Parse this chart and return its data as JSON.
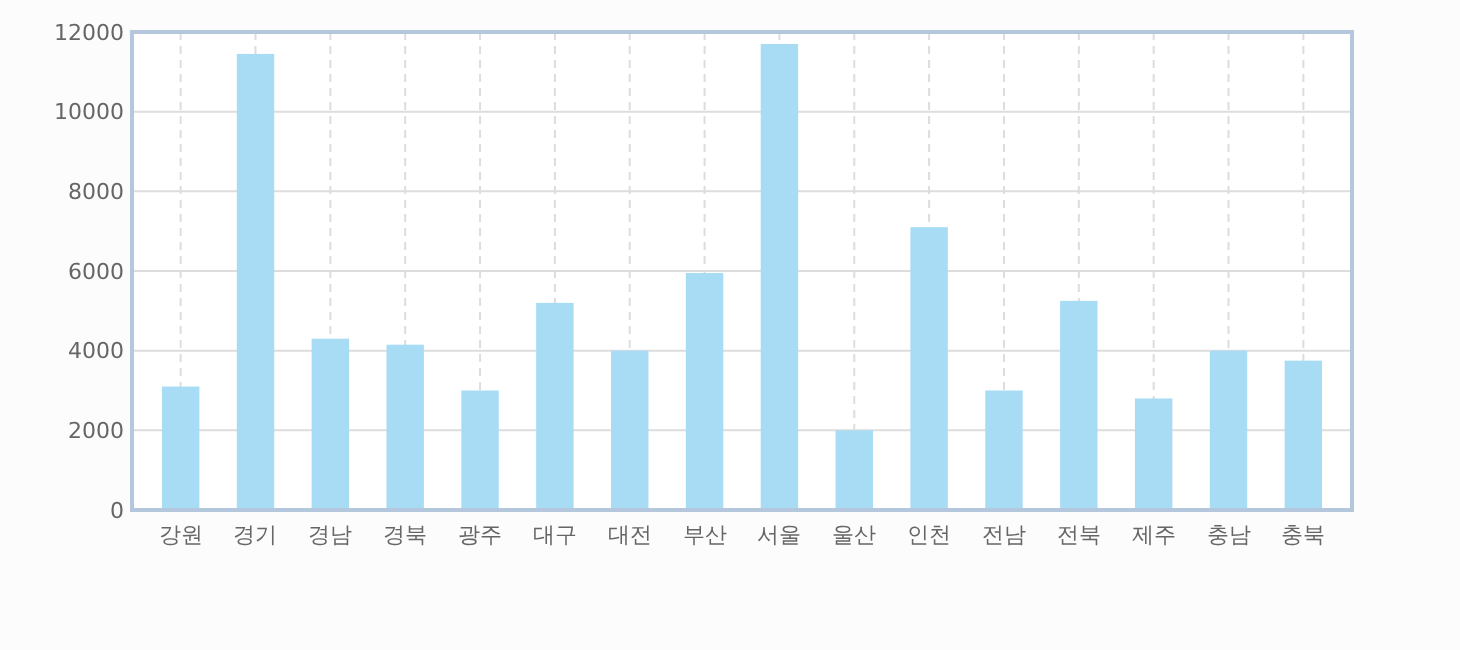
{
  "chart_data": {
    "type": "bar",
    "categories": [
      "강원",
      "경기",
      "경남",
      "경북",
      "광주",
      "대구",
      "대전",
      "부산",
      "서울",
      "울산",
      "인천",
      "전남",
      "전북",
      "제주",
      "충남",
      "충북"
    ],
    "series": [
      {
        "color": "#a8dcf5",
        "values": [
          3100,
          11450,
          4300,
          4150,
          3000,
          5200,
          4000,
          5950,
          11700,
          2000,
          7100,
          3000,
          5250,
          2800,
          4000,
          3750
        ]
      }
    ],
    "ylim": [
      0,
      12000
    ],
    "yticks": [
      0,
      2000,
      4000,
      6000,
      8000,
      10000,
      12000
    ],
    "grid": true
  }
}
